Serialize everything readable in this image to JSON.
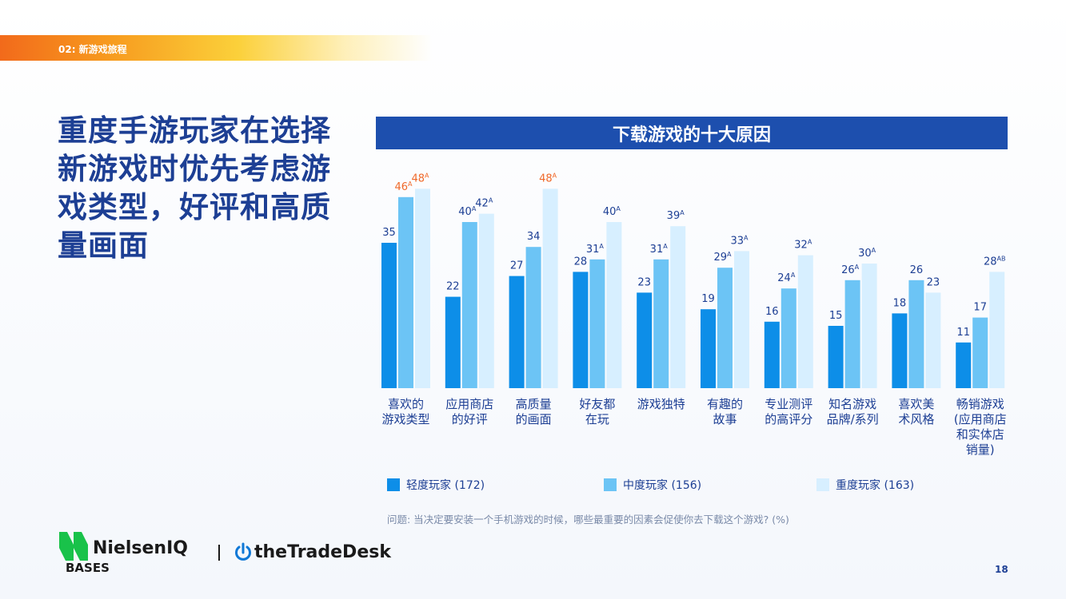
{
  "section_label": "02: 新游戏旅程",
  "headline": "重度手游玩家在选择新游戏时优先考虑游戏类型，好评和高质量画面",
  "colors": {
    "light": "#0d8ee8",
    "medium": "#6cc4f5",
    "heavy": "#d7efff",
    "label_default": "#1d3f94",
    "label_highlight": "#f0692a",
    "title_bar": "#1d4fae"
  },
  "chart_data": {
    "type": "bar",
    "title": "下载游戏的十大原因",
    "categories": [
      [
        "喜欢的",
        "游戏类型"
      ],
      [
        "应用商店",
        "的好评"
      ],
      [
        "高质量",
        "的画面"
      ],
      [
        "好友都",
        "在玩"
      ],
      [
        "游戏独特"
      ],
      [
        "有趣的",
        "故事"
      ],
      [
        "专业测评",
        "的高评分"
      ],
      [
        "知名游戏",
        "品牌/系列"
      ],
      [
        "喜欢美",
        "术风格"
      ],
      [
        "畅销游戏",
        "(应用商店",
        "和实体店",
        "销量)"
      ]
    ],
    "series": [
      {
        "name": "轻度玩家 (172)",
        "values": [
          35,
          22,
          27,
          28,
          23,
          19,
          16,
          15,
          18,
          11
        ],
        "sup": [
          "",
          "",
          "",
          "",
          "",
          "",
          "",
          "",
          "",
          ""
        ],
        "highlight": [
          false,
          false,
          false,
          false,
          false,
          false,
          false,
          false,
          false,
          false
        ]
      },
      {
        "name": "中度玩家 (156)",
        "values": [
          46,
          40,
          34,
          31,
          31,
          29,
          24,
          26,
          26,
          17
        ],
        "sup": [
          "A",
          "A",
          "",
          "A",
          "A",
          "A",
          "A",
          "A",
          "",
          ""
        ],
        "highlight": [
          true,
          false,
          false,
          false,
          false,
          false,
          false,
          false,
          false,
          false
        ]
      },
      {
        "name": "重度玩家 (163)",
        "values": [
          48,
          42,
          48,
          40,
          39,
          33,
          32,
          30,
          23,
          28
        ],
        "sup": [
          "A",
          "A",
          "A",
          "A",
          "A",
          "A",
          "A",
          "A",
          "",
          "AB"
        ],
        "highlight": [
          true,
          false,
          true,
          false,
          false,
          false,
          false,
          false,
          false,
          false
        ]
      }
    ],
    "ylim": [
      0,
      50
    ],
    "grid": false,
    "legend_position": "bottom"
  },
  "question": "问题: 当决定要安装一个手机游戏的时候，哪些最重要的因素会促使你去下载这个游戏? (%)",
  "logos": {
    "nielsen_name": "NielsenIQ",
    "nielsen_sub": "BASES",
    "ttd_name": "theTradeDesk"
  },
  "page_number": "18"
}
